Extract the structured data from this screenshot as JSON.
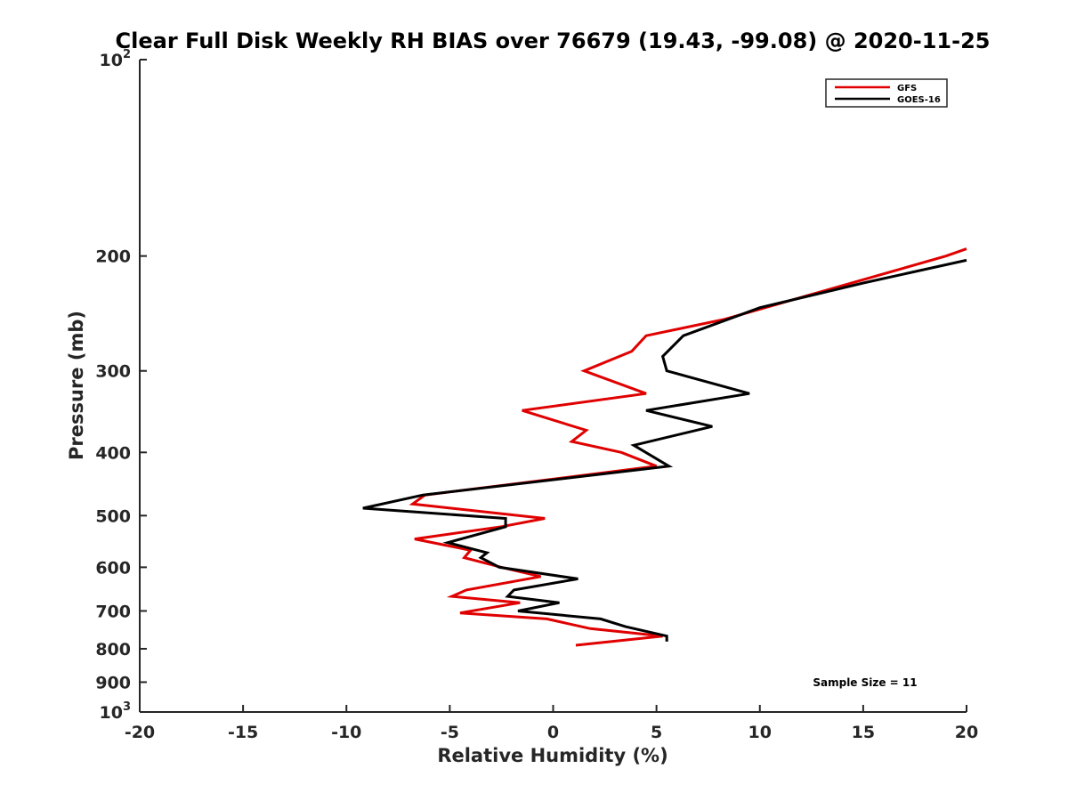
{
  "chart_data": {
    "type": "line",
    "title": "Clear Full Disk Weekly RH BIAS over 76679 (19.43, -99.08) @ 2020-11-25",
    "xlabel": "Relative Humidity (%)",
    "ylabel": "Pressure (mb)",
    "xlim": [
      -20,
      20
    ],
    "ylim": [
      100,
      1000
    ],
    "y_scale": "log",
    "y_reversed": true,
    "grid": false,
    "legend_position": "top-right",
    "x_ticks": [
      "-20",
      "-15",
      "-10",
      "-5",
      "0",
      "5",
      "10",
      "15",
      "20"
    ],
    "y_ticks": [
      {
        "base": "10",
        "sup": "2",
        "value": 100
      },
      {
        "base": "200",
        "sup": "",
        "value": 200
      },
      {
        "base": "300",
        "sup": "",
        "value": 300
      },
      {
        "base": "400",
        "sup": "",
        "value": 400
      },
      {
        "base": "500",
        "sup": "",
        "value": 500
      },
      {
        "base": "600",
        "sup": "",
        "value": 600
      },
      {
        "base": "700",
        "sup": "",
        "value": 700
      },
      {
        "base": "800",
        "sup": "",
        "value": 800
      },
      {
        "base": "900",
        "sup": "",
        "value": 900
      },
      {
        "base": "10",
        "sup": "3",
        "value": 1000
      }
    ],
    "series": [
      {
        "name": "GFS",
        "color": "#e00000",
        "points": [
          [
            20.0,
            195
          ],
          [
            19.0,
            200
          ],
          [
            8.3,
            250
          ],
          [
            4.5,
            265
          ],
          [
            3.8,
            280
          ],
          [
            1.5,
            300
          ],
          [
            4.5,
            325
          ],
          [
            -1.5,
            345
          ],
          [
            1.6,
            370
          ],
          [
            0.9,
            385
          ],
          [
            3.3,
            400
          ],
          [
            5.0,
            420
          ],
          [
            -6.2,
            465
          ],
          [
            -6.8,
            480
          ],
          [
            -0.4,
            505
          ],
          [
            -2.5,
            520
          ],
          [
            -6.7,
            543
          ],
          [
            -4.0,
            565
          ],
          [
            -4.3,
            580
          ],
          [
            -2.5,
            600
          ],
          [
            -0.6,
            620
          ],
          [
            -4.2,
            650
          ],
          [
            -4.9,
            665
          ],
          [
            -1.6,
            680
          ],
          [
            -4.5,
            705
          ],
          [
            -0.3,
            720
          ],
          [
            1.8,
            745
          ],
          [
            5.3,
            765
          ],
          [
            1.1,
            790
          ]
        ]
      },
      {
        "name": "GOES-16",
        "color": "#000000",
        "points": [
          [
            20.0,
            203
          ],
          [
            15.0,
            220
          ],
          [
            10.0,
            240
          ],
          [
            6.3,
            265
          ],
          [
            5.3,
            285
          ],
          [
            5.5,
            300
          ],
          [
            9.5,
            325
          ],
          [
            4.5,
            345
          ],
          [
            7.7,
            365
          ],
          [
            3.9,
            390
          ],
          [
            5.6,
            420
          ],
          [
            -6.3,
            465
          ],
          [
            -9.2,
            487
          ],
          [
            -2.3,
            505
          ],
          [
            -2.3,
            520
          ],
          [
            -5.1,
            550
          ],
          [
            -3.2,
            570
          ],
          [
            -3.5,
            580
          ],
          [
            -2.6,
            600
          ],
          [
            1.2,
            625
          ],
          [
            -1.9,
            650
          ],
          [
            -2.2,
            665
          ],
          [
            0.3,
            680
          ],
          [
            -1.7,
            700
          ],
          [
            2.3,
            720
          ],
          [
            3.5,
            740
          ],
          [
            5.5,
            765
          ],
          [
            5.5,
            780
          ]
        ]
      }
    ],
    "annotation": "Sample Size = 11"
  }
}
